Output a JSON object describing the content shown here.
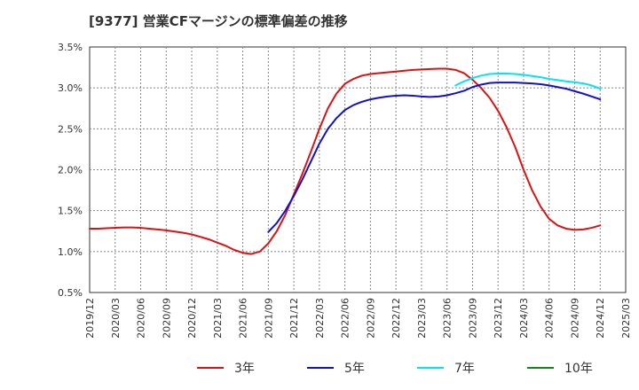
{
  "chart_data": {
    "type": "line",
    "title": "[9377]  営業CFマージンの標準偏差の推移",
    "xlabel": "",
    "ylabel": "",
    "x_ticks": [
      "2019/12",
      "2020/03",
      "2020/06",
      "2020/09",
      "2020/12",
      "2021/03",
      "2021/06",
      "2021/09",
      "2021/12",
      "2022/03",
      "2022/06",
      "2022/09",
      "2022/12",
      "2023/03",
      "2023/06",
      "2023/09",
      "2023/12",
      "2024/03",
      "2024/06",
      "2024/09",
      "2024/12",
      "2025/03"
    ],
    "y_ticks": [
      "0.5%",
      "1.0%",
      "1.5%",
      "2.0%",
      "2.5%",
      "3.0%",
      "3.5%"
    ],
    "ylim": [
      0.5,
      3.5
    ],
    "grid": true,
    "legend_position": "bottom",
    "series": [
      {
        "name": "3年",
        "color": "#dd1111",
        "points": [
          [
            "2019/12",
            1.28
          ],
          [
            "2020/01",
            1.28
          ],
          [
            "2020/02",
            1.285
          ],
          [
            "2020/03",
            1.29
          ],
          [
            "2020/04",
            1.295
          ],
          [
            "2020/05",
            1.295
          ],
          [
            "2020/06",
            1.29
          ],
          [
            "2020/07",
            1.28
          ],
          [
            "2020/08",
            1.27
          ],
          [
            "2020/09",
            1.26
          ],
          [
            "2020/10",
            1.245
          ],
          [
            "2020/11",
            1.23
          ],
          [
            "2020/12",
            1.21
          ],
          [
            "2021/01",
            1.18
          ],
          [
            "2021/02",
            1.15
          ],
          [
            "2021/03",
            1.11
          ],
          [
            "2021/04",
            1.07
          ],
          [
            "2021/05",
            1.02
          ],
          [
            "2021/06",
            0.985
          ],
          [
            "2021/07",
            0.97
          ],
          [
            "2021/08",
            1.0
          ],
          [
            "2021/09",
            1.1
          ],
          [
            "2021/10",
            1.25
          ],
          [
            "2021/11",
            1.45
          ],
          [
            "2021/12",
            1.7
          ],
          [
            "2022/01",
            1.95
          ],
          [
            "2022/02",
            2.22
          ],
          [
            "2022/03",
            2.5
          ],
          [
            "2022/04",
            2.75
          ],
          [
            "2022/05",
            2.93
          ],
          [
            "2022/06",
            3.05
          ],
          [
            "2022/07",
            3.11
          ],
          [
            "2022/08",
            3.15
          ],
          [
            "2022/09",
            3.17
          ],
          [
            "2022/10",
            3.18
          ],
          [
            "2022/11",
            3.19
          ],
          [
            "2022/12",
            3.2
          ],
          [
            "2023/01",
            3.21
          ],
          [
            "2023/02",
            3.22
          ],
          [
            "2023/03",
            3.225
          ],
          [
            "2023/04",
            3.23
          ],
          [
            "2023/05",
            3.235
          ],
          [
            "2023/06",
            3.235
          ],
          [
            "2023/07",
            3.22
          ],
          [
            "2023/08",
            3.18
          ],
          [
            "2023/09",
            3.1
          ],
          [
            "2023/10",
            3.0
          ],
          [
            "2023/11",
            2.88
          ],
          [
            "2023/12",
            2.72
          ],
          [
            "2024/01",
            2.52
          ],
          [
            "2024/02",
            2.28
          ],
          [
            "2024/03",
            2.0
          ],
          [
            "2024/04",
            1.75
          ],
          [
            "2024/05",
            1.55
          ],
          [
            "2024/06",
            1.4
          ],
          [
            "2024/07",
            1.32
          ],
          [
            "2024/08",
            1.28
          ],
          [
            "2024/09",
            1.265
          ],
          [
            "2024/10",
            1.27
          ],
          [
            "2024/11",
            1.29
          ],
          [
            "2024/12",
            1.32
          ]
        ]
      },
      {
        "name": "5年",
        "color": "#1111cc",
        "points": [
          [
            "2021/09",
            1.24
          ],
          [
            "2021/10",
            1.35
          ],
          [
            "2021/11",
            1.5
          ],
          [
            "2021/12",
            1.68
          ],
          [
            "2022/01",
            1.88
          ],
          [
            "2022/02",
            2.1
          ],
          [
            "2022/03",
            2.32
          ],
          [
            "2022/04",
            2.5
          ],
          [
            "2022/05",
            2.63
          ],
          [
            "2022/06",
            2.73
          ],
          [
            "2022/07",
            2.79
          ],
          [
            "2022/08",
            2.83
          ],
          [
            "2022/09",
            2.86
          ],
          [
            "2022/10",
            2.88
          ],
          [
            "2022/11",
            2.895
          ],
          [
            "2022/12",
            2.905
          ],
          [
            "2023/01",
            2.91
          ],
          [
            "2023/02",
            2.905
          ],
          [
            "2023/03",
            2.895
          ],
          [
            "2023/04",
            2.89
          ],
          [
            "2023/05",
            2.895
          ],
          [
            "2023/06",
            2.91
          ],
          [
            "2023/07",
            2.935
          ],
          [
            "2023/08",
            2.965
          ],
          [
            "2023/09",
            3.01
          ],
          [
            "2023/10",
            3.04
          ],
          [
            "2023/11",
            3.06
          ],
          [
            "2023/12",
            3.065
          ],
          [
            "2024/01",
            3.065
          ],
          [
            "2024/02",
            3.065
          ],
          [
            "2024/03",
            3.06
          ],
          [
            "2024/04",
            3.055
          ],
          [
            "2024/05",
            3.045
          ],
          [
            "2024/06",
            3.03
          ],
          [
            "2024/07",
            3.01
          ],
          [
            "2024/08",
            2.99
          ],
          [
            "2024/09",
            2.96
          ],
          [
            "2024/10",
            2.93
          ],
          [
            "2024/11",
            2.895
          ],
          [
            "2024/12",
            2.86
          ]
        ]
      },
      {
        "name": "7年",
        "color": "#00e5ee",
        "points": [
          [
            "2023/07",
            3.03
          ],
          [
            "2023/08",
            3.08
          ],
          [
            "2023/09",
            3.12
          ],
          [
            "2023/10",
            3.15
          ],
          [
            "2023/11",
            3.17
          ],
          [
            "2023/12",
            3.175
          ],
          [
            "2024/01",
            3.175
          ],
          [
            "2024/02",
            3.17
          ],
          [
            "2024/03",
            3.16
          ],
          [
            "2024/04",
            3.145
          ],
          [
            "2024/05",
            3.13
          ],
          [
            "2024/06",
            3.11
          ],
          [
            "2024/07",
            3.095
          ],
          [
            "2024/08",
            3.08
          ],
          [
            "2024/09",
            3.07
          ],
          [
            "2024/10",
            3.055
          ],
          [
            "2024/11",
            3.03
          ],
          [
            "2024/12",
            2.99
          ]
        ]
      },
      {
        "name": "10年",
        "color": "#118811",
        "points": []
      }
    ]
  }
}
